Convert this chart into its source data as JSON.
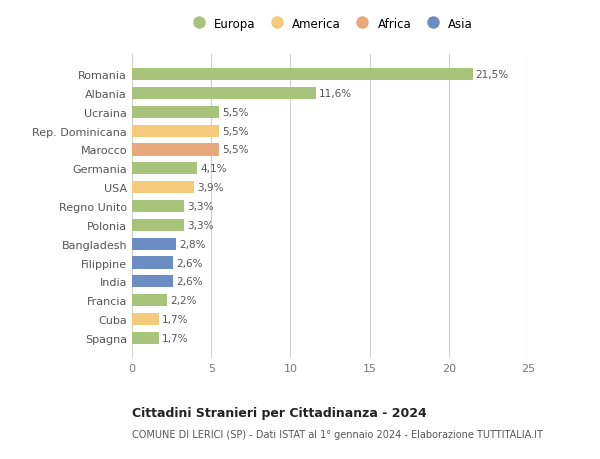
{
  "countries": [
    "Romania",
    "Albania",
    "Ucraina",
    "Rep. Dominicana",
    "Marocco",
    "Germania",
    "USA",
    "Regno Unito",
    "Polonia",
    "Bangladesh",
    "Filippine",
    "India",
    "Francia",
    "Cuba",
    "Spagna"
  ],
  "values": [
    21.5,
    11.6,
    5.5,
    5.5,
    5.5,
    4.1,
    3.9,
    3.3,
    3.3,
    2.8,
    2.6,
    2.6,
    2.2,
    1.7,
    1.7
  ],
  "labels": [
    "21,5%",
    "11,6%",
    "5,5%",
    "5,5%",
    "5,5%",
    "4,1%",
    "3,9%",
    "3,3%",
    "3,3%",
    "2,8%",
    "2,6%",
    "2,6%",
    "2,2%",
    "1,7%",
    "1,7%"
  ],
  "continents": [
    "Europa",
    "Europa",
    "Europa",
    "America",
    "Africa",
    "Europa",
    "America",
    "Europa",
    "Europa",
    "Asia",
    "Asia",
    "Asia",
    "Europa",
    "America",
    "Europa"
  ],
  "colors": {
    "Europa": "#a8c47a",
    "America": "#f5ca7a",
    "Africa": "#e8a87c",
    "Asia": "#6b8dc4"
  },
  "legend_order": [
    "Europa",
    "America",
    "Africa",
    "Asia"
  ],
  "xlim": [
    0,
    25
  ],
  "xticks": [
    0,
    5,
    10,
    15,
    20,
    25
  ],
  "title": "Cittadini Stranieri per Cittadinanza - 2024",
  "subtitle": "COMUNE DI LERICI (SP) - Dati ISTAT al 1° gennaio 2024 - Elaborazione TUTTITALIA.IT",
  "background_color": "#ffffff",
  "grid_color": "#d0d0d0"
}
